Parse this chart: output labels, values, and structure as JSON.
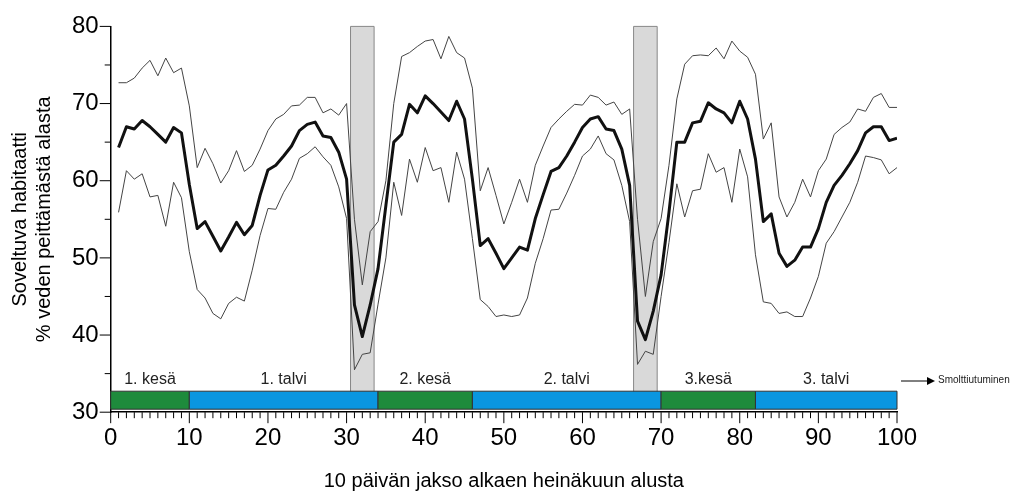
{
  "chart_data": {
    "type": "line",
    "xlabel": "10 päivän jakso alkaen heinäkuun alusta",
    "ylabel": "Soveltuva habitaatti\n% veden peittämästä alasta",
    "x": [
      1,
      2,
      3,
      4,
      5,
      6,
      7,
      8,
      9,
      10,
      11,
      12,
      13,
      14,
      15,
      16,
      17,
      18,
      19,
      20,
      21,
      22,
      23,
      24,
      25,
      26,
      27,
      28,
      29,
      30,
      31,
      32,
      33,
      34,
      35,
      36,
      37,
      38,
      39,
      40,
      41,
      42,
      43,
      44,
      45,
      46,
      47,
      48,
      49,
      50,
      51,
      52,
      53,
      54,
      55,
      56,
      57,
      58,
      59,
      60,
      61,
      62,
      63,
      64,
      65,
      66,
      67,
      68,
      69,
      70,
      71,
      72,
      73,
      74,
      75,
      76,
      77,
      78,
      79,
      80,
      81,
      82,
      83,
      84,
      85,
      86,
      87,
      88,
      89,
      90,
      91,
      92,
      93,
      94,
      95,
      96,
      97,
      98,
      99,
      100
    ],
    "series": [
      {
        "color": "#444444",
        "values": [
          72.7,
          72.7,
          73.3,
          74.6,
          75.6,
          73.6,
          75.9,
          74.0,
          74.6,
          69.7,
          61.7,
          64.2,
          62.2,
          59.7,
          61.3,
          63.9,
          61.2,
          62.0,
          64.1,
          66.5,
          68.0,
          68.6,
          69.7,
          69.8,
          70.8,
          70.8,
          68.8,
          69.3,
          68.5,
          70.0,
          55.0,
          46.5,
          53.4,
          54.7,
          60.0,
          70.0,
          76.1,
          76.6,
          77.4,
          78.1,
          78.3,
          75.8,
          78.7,
          76.6,
          75.9,
          72.0,
          58.7,
          61.7,
          58.1,
          54.4,
          57.2,
          60.2,
          57.2,
          62.0,
          64.5,
          66.9,
          68.0,
          69.0,
          69.9,
          69.8,
          71.1,
          70.8,
          69.8,
          70.2,
          68.6,
          69.3,
          55.0,
          45.0,
          52.1,
          55.1,
          62.0,
          70.6,
          75.1,
          76.2,
          76.3,
          76.2,
          77.2,
          75.8,
          78.1,
          76.8,
          76.0,
          73.8,
          65.4,
          67.5,
          57.9,
          55.3,
          57.2,
          60.2,
          57.9,
          61.3,
          62.8,
          66.0,
          66.9,
          67.6,
          69.3,
          69.0,
          70.8,
          71.3,
          69.5,
          69.5
        ]
      },
      {
        "color": "#111111",
        "values": [
          64.3,
          67.0,
          66.7,
          67.8,
          67.0,
          66.0,
          65.0,
          66.9,
          66.2,
          59.5,
          53.8,
          54.7,
          52.8,
          50.9,
          52.7,
          54.6,
          53.0,
          54.2,
          58.1,
          61.4,
          62.0,
          63.2,
          64.5,
          66.5,
          67.3,
          67.6,
          65.8,
          65.6,
          63.7,
          60.2,
          43.9,
          39.8,
          43.9,
          48.6,
          56.8,
          65.0,
          66.0,
          69.9,
          68.8,
          71.0,
          70.0,
          68.9,
          67.8,
          70.3,
          68.0,
          60.2,
          51.6,
          52.5,
          50.6,
          48.6,
          50.0,
          51.4,
          51.0,
          55.1,
          58.2,
          61.2,
          61.7,
          63.2,
          65.0,
          66.9,
          68.0,
          68.3,
          66.7,
          66.5,
          64.1,
          59.4,
          41.8,
          39.4,
          43.1,
          47.8,
          55.9,
          65.0,
          65.0,
          67.5,
          67.7,
          70.1,
          69.3,
          68.8,
          67.5,
          70.3,
          68.0,
          62.8,
          54.7,
          55.7,
          50.6,
          48.9,
          49.7,
          51.4,
          51.4,
          53.8,
          57.2,
          59.4,
          60.7,
          62.2,
          63.9,
          66.2,
          67.0,
          67.0,
          65.2,
          65.5
        ]
      },
      {
        "color": "#444444",
        "values": [
          55.9,
          61.3,
          60.2,
          60.9,
          57.9,
          58.1,
          54.1,
          59.8,
          57.8,
          50.8,
          45.9,
          44.8,
          42.8,
          42.1,
          44.1,
          44.9,
          44.4,
          48.4,
          52.9,
          56.4,
          56.3,
          58.5,
          60.2,
          62.9,
          63.5,
          64.4,
          63.1,
          62.0,
          59.2,
          55.1,
          35.5,
          37.5,
          37.7,
          44.0,
          50.0,
          59.8,
          55.5,
          62.8,
          59.8,
          64.3,
          61.3,
          61.7,
          57.2,
          63.7,
          60.2,
          52.5,
          44.6,
          43.7,
          42.4,
          42.6,
          42.4,
          42.6,
          44.8,
          49.3,
          52.5,
          56.2,
          56.3,
          58.4,
          60.7,
          63.2,
          64.1,
          65.8,
          63.5,
          62.7,
          59.4,
          54.7,
          36.2,
          37.9,
          37.5,
          45.0,
          52.0,
          59.6,
          55.3,
          58.7,
          58.9,
          63.5,
          61.1,
          61.7,
          57.2,
          64.1,
          60.5,
          50.4,
          44.3,
          44.1,
          42.8,
          43.0,
          42.4,
          42.4,
          44.8,
          47.6,
          51.9,
          53.4,
          55.3,
          57.2,
          59.8,
          63.2,
          63.0,
          62.7,
          60.9,
          61.7
        ]
      }
    ],
    "xlim": [
      0,
      100
    ],
    "ylim": [
      30,
      80
    ],
    "xticks": [
      0,
      {
        "value": 1,
        "label": null
      },
      {
        "value": 2,
        "label": null
      },
      {
        "value": 3,
        "label": null
      },
      {
        "value": 4,
        "label": null
      },
      {
        "value": 5,
        "label": null
      },
      {
        "value": 6,
        "label": null
      },
      {
        "value": 7,
        "label": null
      },
      {
        "value": 8,
        "label": null
      },
      {
        "value": 9,
        "label": null
      },
      10,
      {
        "value": 11,
        "label": null
      },
      {
        "value": 12,
        "label": null
      },
      {
        "value": 13,
        "label": null
      },
      {
        "value": 14,
        "label": null
      },
      {
        "value": 15,
        "label": null
      },
      {
        "value": 16,
        "label": null
      },
      {
        "value": 17,
        "label": null
      },
      {
        "value": 18,
        "label": null
      },
      {
        "value": 19,
        "label": null
      },
      20,
      {
        "value": 21,
        "label": null
      },
      {
        "value": 22,
        "label": null
      },
      {
        "value": 23,
        "label": null
      },
      {
        "value": 24,
        "label": null
      },
      {
        "value": 25,
        "label": null
      },
      {
        "value": 26,
        "label": null
      },
      {
        "value": 27,
        "label": null
      },
      {
        "value": 28,
        "label": null
      },
      {
        "value": 29,
        "label": null
      },
      30,
      {
        "value": 31,
        "label": null
      },
      {
        "value": 32,
        "label": null
      },
      {
        "value": 33,
        "label": null
      },
      {
        "value": 34,
        "label": null
      },
      {
        "value": 35,
        "label": null
      },
      {
        "value": 36,
        "label": null
      },
      {
        "value": 37,
        "label": null
      },
      {
        "value": 38,
        "label": null
      },
      {
        "value": 39,
        "label": null
      },
      40,
      {
        "value": 41,
        "label": null
      },
      {
        "value": 42,
        "label": null
      },
      {
        "value": 43,
        "label": null
      },
      {
        "value": 44,
        "label": null
      },
      {
        "value": 45,
        "label": null
      },
      {
        "value": 46,
        "label": null
      },
      {
        "value": 47,
        "label": null
      },
      {
        "value": 48,
        "label": null
      },
      {
        "value": 49,
        "label": null
      },
      50,
      {
        "value": 51,
        "label": null
      },
      {
        "value": 52,
        "label": null
      },
      {
        "value": 53,
        "label": null
      },
      {
        "value": 54,
        "label": null
      },
      {
        "value": 55,
        "label": null
      },
      {
        "value": 56,
        "label": null
      },
      {
        "value": 57,
        "label": null
      },
      {
        "value": 58,
        "label": null
      },
      {
        "value": 59,
        "label": null
      },
      60,
      {
        "value": 61,
        "label": null
      },
      {
        "value": 62,
        "label": null
      },
      {
        "value": 63,
        "label": null
      },
      {
        "value": 64,
        "label": null
      },
      {
        "value": 65,
        "label": null
      },
      {
        "value": 66,
        "label": null
      },
      {
        "value": 67,
        "label": null
      },
      {
        "value": 68,
        "label": null
      },
      {
        "value": 69,
        "label": null
      },
      70,
      {
        "value": 71,
        "label": null
      },
      {
        "value": 72,
        "label": null
      },
      {
        "value": 73,
        "label": null
      },
      {
        "value": 74,
        "label": null
      },
      {
        "value": 75,
        "label": null
      },
      {
        "value": 76,
        "label": null
      },
      {
        "value": 77,
        "label": null
      },
      {
        "value": 78,
        "label": null
      },
      {
        "value": 79,
        "label": null
      },
      80,
      {
        "value": 81,
        "label": null
      },
      {
        "value": 82,
        "label": null
      },
      {
        "value": 83,
        "label": null
      },
      {
        "value": 84,
        "label": null
      },
      {
        "value": 85,
        "label": null
      },
      {
        "value": 86,
        "label": null
      },
      {
        "value": 87,
        "label": null
      },
      {
        "value": 88,
        "label": null
      },
      {
        "value": 89,
        "label": null
      },
      90,
      {
        "value": 91,
        "label": null
      },
      {
        "value": 92,
        "label": null
      },
      {
        "value": 93,
        "label": null
      },
      {
        "value": 94,
        "label": null
      },
      {
        "value": 95,
        "label": null
      },
      {
        "value": 96,
        "label": null
      },
      {
        "value": 97,
        "label": null
      },
      {
        "value": 98,
        "label": null
      },
      {
        "value": 99,
        "label": null
      },
      100
    ],
    "yticks": [
      30,
      {
        "value": 35,
        "label": null
      },
      40,
      {
        "value": 45,
        "label": null
      },
      50,
      {
        "value": 55,
        "label": null
      },
      60,
      {
        "value": 65,
        "label": null
      },
      70,
      {
        "value": 75,
        "label": null
      },
      80
    ],
    "bands": [
      {
        "axis": "x",
        "from": 30.5,
        "to": 33.5,
        "color": "#d9d9d9"
      },
      {
        "axis": "x",
        "from": 66.5,
        "to": 69.5,
        "color": "#d9d9d9"
      },
      {
        "axis": "x",
        "from": 0,
        "to": 10,
        "label": "1. kesä",
        "color": "#1e8b3c"
      },
      {
        "axis": "x",
        "from": 10,
        "to": 34,
        "label": "1. talvi",
        "color": "#0a96e0"
      },
      {
        "axis": "x",
        "from": 34,
        "to": 46,
        "label": "2. kesä",
        "color": "#1e8b3c"
      },
      {
        "axis": "x",
        "from": 46,
        "to": 70,
        "label": "2. talvi",
        "color": "#0a96e0"
      },
      {
        "axis": "x",
        "from": 70,
        "to": 82,
        "label": "3.kesä",
        "color": "#1e8b3c"
      },
      {
        "axis": "x",
        "from": 82,
        "to": 100,
        "label": "3. talvi",
        "color": "#0a96e0"
      }
    ],
    "annotations": [
      "Smolttiutuminen"
    ],
    "grid": false,
    "legend": false,
    "marker": "none",
    "line_style": "solid"
  }
}
